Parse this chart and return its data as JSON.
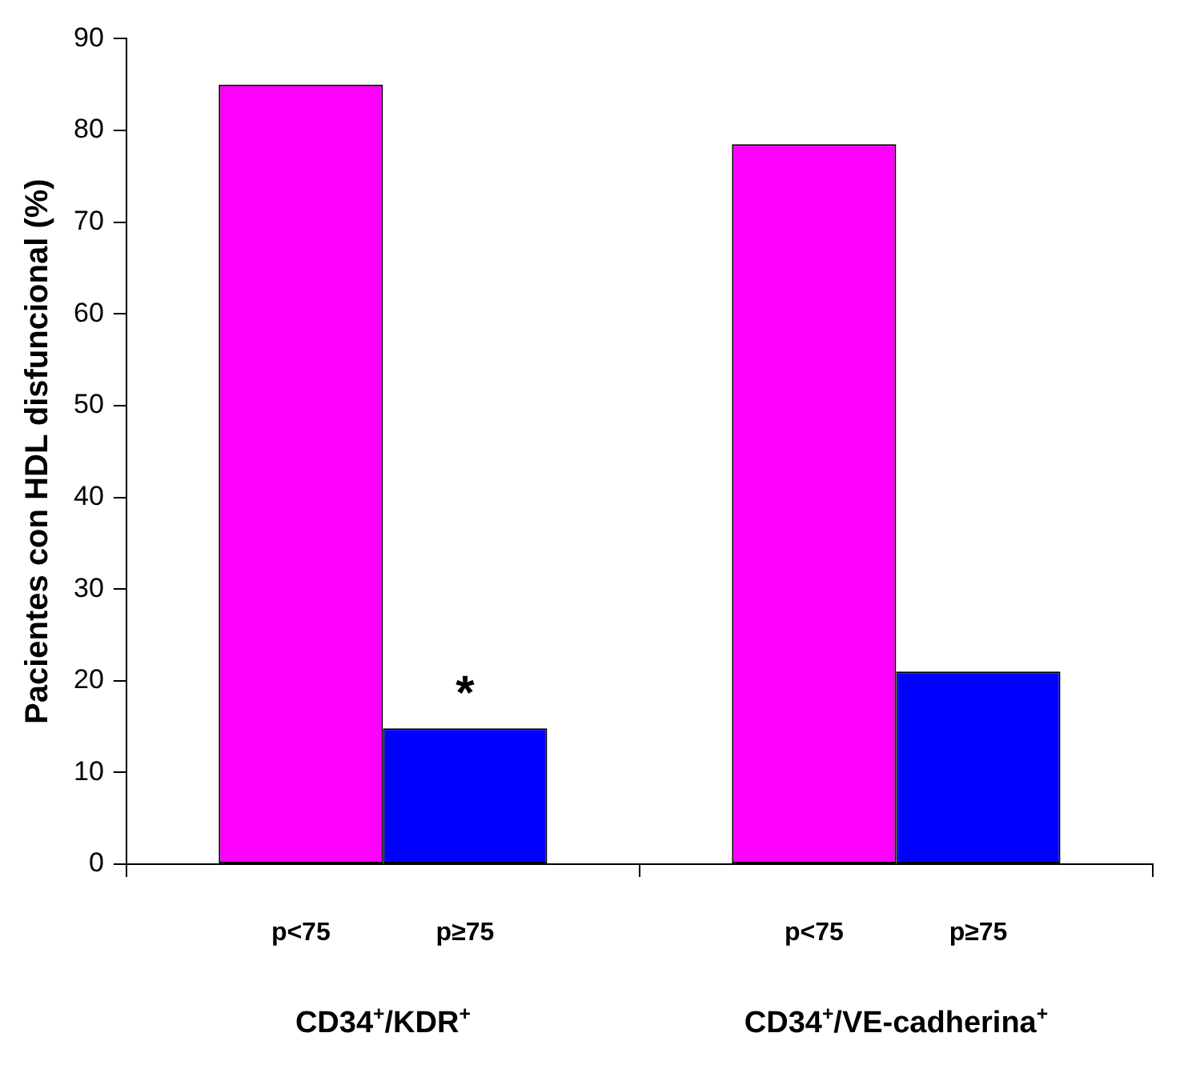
{
  "chart_data": {
    "type": "bar",
    "ylabel": "Pacientes con HDL disfuncional (%)",
    "categories": [
      "CD34$^{+}$/KDR$^{+}$",
      "CD34$^{+}$/VE-cadherina$^{+}$"
    ],
    "series": [
      {
        "name": "p<75",
        "color": "#ff00ff",
        "values": [
          85,
          78.5
        ]
      },
      {
        "name": "p≥75",
        "color": "#0000ff",
        "values": [
          14.8,
          21
        ]
      }
    ],
    "ylim": [
      0,
      90
    ],
    "yticks": [
      0,
      10,
      20,
      30,
      40,
      50,
      60,
      70,
      80,
      90
    ],
    "grid": false,
    "legend": false,
    "annotations": [
      {
        "text": "*",
        "x": "CD34$^{+}$/KDR$^{+}$",
        "y": 19
      }
    ]
  }
}
